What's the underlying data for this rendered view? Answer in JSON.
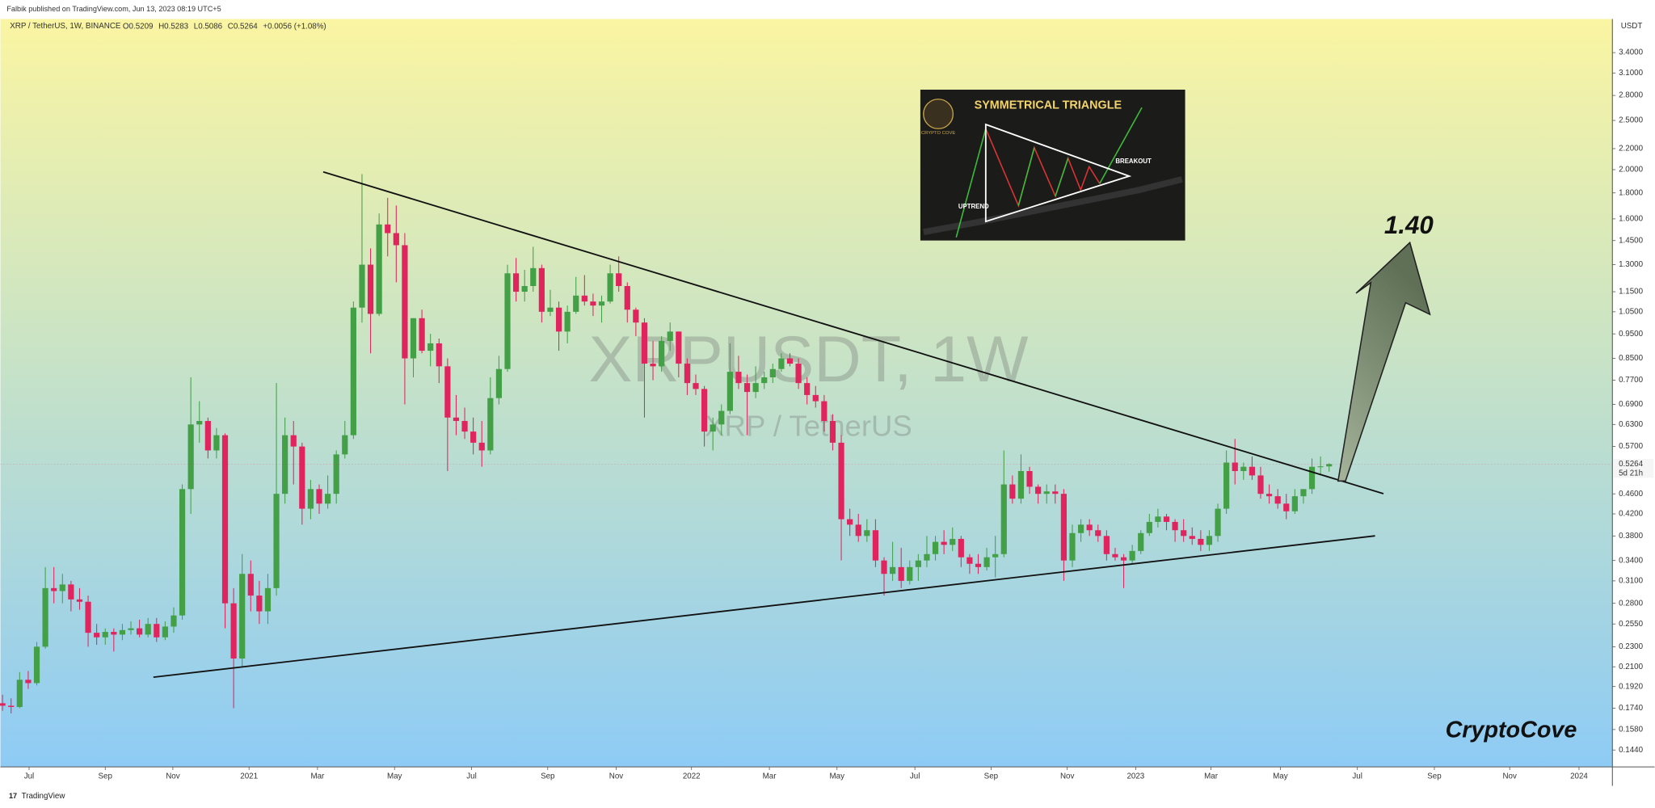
{
  "header": {
    "author": "Falbik published on TradingView.com, Jun 13, 2023 08:19 UTC+5",
    "brand": "TradingView"
  },
  "chart_data": {
    "type": "candlestick",
    "symbol": "XRP / TetherUS, 1W, BINANCE",
    "ohlc_labels": [
      "O",
      "H",
      "L",
      "C"
    ],
    "change": "+0.0056 (+1.08%)",
    "watermark": "XRPUSDT, 1W",
    "watermark_sub": "XRP / TetherUS",
    "currency": "USDT",
    "countdown": "5d 21h",
    "target_label": "1.40",
    "signature": "CryptoCove",
    "inset": {
      "title": "SYMMETRICAL TRIANGLE",
      "breakout": "BREAKOUT",
      "uptrend": "UPTREND",
      "logo": "CRYPTO COVE"
    },
    "log_scale": true,
    "up_color": "#43a047",
    "down_color": "#e0245e",
    "ylim": [
      0.1334,
      3.96
    ],
    "yticks": [
      {
        "value": 3.4,
        "label": "3.4000"
      },
      {
        "value": 3.1,
        "label": "3.1000"
      },
      {
        "value": 2.8,
        "label": "2.8000"
      },
      {
        "value": 2.5,
        "label": "2.5000"
      },
      {
        "value": 2.2,
        "label": "2.2000"
      },
      {
        "value": 2.0,
        "label": "2.0000"
      },
      {
        "value": 1.8,
        "label": "1.8000"
      },
      {
        "value": 1.6,
        "label": "1.6000"
      },
      {
        "value": 1.45,
        "label": "1.4500"
      },
      {
        "value": 1.3,
        "label": "1.3000"
      },
      {
        "value": 1.15,
        "label": "1.1500"
      },
      {
        "value": 1.05,
        "label": "1.0500"
      },
      {
        "value": 0.95,
        "label": "0.9500"
      },
      {
        "value": 0.85,
        "label": "0.8500"
      },
      {
        "value": 0.77,
        "label": "0.7700"
      },
      {
        "value": 0.69,
        "label": "0.6900"
      },
      {
        "value": 0.63,
        "label": "0.6300"
      },
      {
        "value": 0.57,
        "label": "0.5700"
      },
      {
        "value": 0.46,
        "label": "0.4600"
      },
      {
        "value": 0.42,
        "label": "0.4200"
      },
      {
        "value": 0.38,
        "label": "0.3800"
      },
      {
        "value": 0.34,
        "label": "0.3400"
      },
      {
        "value": 0.31,
        "label": "0.3100"
      },
      {
        "value": 0.28,
        "label": "0.2800"
      },
      {
        "value": 0.255,
        "label": "0.2550"
      },
      {
        "value": 0.23,
        "label": "0.2300"
      },
      {
        "value": 0.21,
        "label": "0.2100"
      },
      {
        "value": 0.192,
        "label": "0.1920"
      },
      {
        "value": 0.174,
        "label": "0.1740"
      },
      {
        "value": 0.158,
        "label": "0.1580"
      },
      {
        "value": 0.144,
        "label": "0.1440"
      }
    ],
    "xlim": [
      -0.25,
      188.1
    ],
    "xticks": [
      {
        "value": 3.1,
        "label": "Jul"
      },
      {
        "value": 12.0,
        "label": "Sep"
      },
      {
        "value": 19.9,
        "label": "Nov"
      },
      {
        "value": 28.8,
        "label": "2021"
      },
      {
        "value": 36.8,
        "label": "Mar"
      },
      {
        "value": 45.8,
        "label": "May"
      },
      {
        "value": 54.8,
        "label": "Jul"
      },
      {
        "value": 63.7,
        "label": "Sep"
      },
      {
        "value": 71.7,
        "label": "Nov"
      },
      {
        "value": 80.5,
        "label": "2022"
      },
      {
        "value": 89.6,
        "label": "Mar"
      },
      {
        "value": 97.5,
        "label": "May"
      },
      {
        "value": 106.6,
        "label": "Jul"
      },
      {
        "value": 115.5,
        "label": "Sep"
      },
      {
        "value": 124.4,
        "label": "Nov"
      },
      {
        "value": 132.4,
        "label": "2023"
      },
      {
        "value": 141.2,
        "label": "Mar"
      },
      {
        "value": 149.3,
        "label": "May"
      },
      {
        "value": 158.3,
        "label": "Jul"
      },
      {
        "value": 167.3,
        "label": "Sep"
      },
      {
        "value": 176.1,
        "label": "Nov"
      },
      {
        "value": 184.2,
        "label": "2024"
      }
    ],
    "ohlc": [
      [
        0.178,
        0.185,
        0.172,
        0.176
      ],
      [
        0.176,
        0.182,
        0.17,
        0.175
      ],
      [
        0.175,
        0.205,
        0.174,
        0.198
      ],
      [
        0.198,
        0.206,
        0.19,
        0.195
      ],
      [
        0.195,
        0.235,
        0.193,
        0.23
      ],
      [
        0.23,
        0.33,
        0.228,
        0.3
      ],
      [
        0.3,
        0.33,
        0.28,
        0.296
      ],
      [
        0.296,
        0.32,
        0.28,
        0.305
      ],
      [
        0.305,
        0.31,
        0.27,
        0.285
      ],
      [
        0.285,
        0.3,
        0.272,
        0.282
      ],
      [
        0.282,
        0.29,
        0.23,
        0.245
      ],
      [
        0.245,
        0.255,
        0.232,
        0.24
      ],
      [
        0.24,
        0.25,
        0.232,
        0.246
      ],
      [
        0.246,
        0.25,
        0.225,
        0.243
      ],
      [
        0.243,
        0.255,
        0.237,
        0.248
      ],
      [
        0.248,
        0.258,
        0.243,
        0.25
      ],
      [
        0.25,
        0.26,
        0.24,
        0.243
      ],
      [
        0.243,
        0.262,
        0.24,
        0.255
      ],
      [
        0.255,
        0.262,
        0.235,
        0.24
      ],
      [
        0.24,
        0.258,
        0.237,
        0.252
      ],
      [
        0.252,
        0.275,
        0.245,
        0.265
      ],
      [
        0.265,
        0.48,
        0.26,
        0.47
      ],
      [
        0.47,
        0.78,
        0.42,
        0.63
      ],
      [
        0.63,
        0.7,
        0.58,
        0.64
      ],
      [
        0.64,
        0.65,
        0.54,
        0.56
      ],
      [
        0.56,
        0.62,
        0.54,
        0.6
      ],
      [
        0.6,
        0.605,
        0.25,
        0.28
      ],
      [
        0.28,
        0.3,
        0.174,
        0.218
      ],
      [
        0.218,
        0.35,
        0.21,
        0.32
      ],
      [
        0.32,
        0.34,
        0.27,
        0.29
      ],
      [
        0.29,
        0.31,
        0.255,
        0.27
      ],
      [
        0.27,
        0.32,
        0.255,
        0.3
      ],
      [
        0.3,
        0.76,
        0.29,
        0.46
      ],
      [
        0.46,
        0.65,
        0.44,
        0.6
      ],
      [
        0.6,
        0.64,
        0.48,
        0.57
      ],
      [
        0.57,
        0.58,
        0.4,
        0.43
      ],
      [
        0.43,
        0.49,
        0.41,
        0.47
      ],
      [
        0.47,
        0.48,
        0.42,
        0.44
      ],
      [
        0.44,
        0.5,
        0.43,
        0.46
      ],
      [
        0.46,
        0.56,
        0.44,
        0.55
      ],
      [
        0.55,
        0.64,
        0.54,
        0.6
      ],
      [
        0.6,
        1.1,
        0.59,
        1.07
      ],
      [
        1.07,
        1.96,
        1.0,
        1.3
      ],
      [
        1.3,
        1.4,
        0.87,
        1.04
      ],
      [
        1.04,
        1.64,
        1.03,
        1.56
      ],
      [
        1.56,
        1.76,
        1.35,
        1.5
      ],
      [
        1.5,
        1.7,
        1.2,
        1.42
      ],
      [
        1.42,
        1.5,
        0.69,
        0.85
      ],
      [
        0.85,
        1.02,
        0.78,
        1.02
      ],
      [
        1.02,
        1.06,
        0.87,
        0.88
      ],
      [
        0.88,
        0.95,
        0.82,
        0.91
      ],
      [
        0.91,
        0.93,
        0.76,
        0.82
      ],
      [
        0.82,
        0.85,
        0.51,
        0.65
      ],
      [
        0.65,
        0.72,
        0.6,
        0.64
      ],
      [
        0.64,
        0.68,
        0.59,
        0.61
      ],
      [
        0.61,
        0.65,
        0.55,
        0.58
      ],
      [
        0.58,
        0.64,
        0.52,
        0.56
      ],
      [
        0.56,
        0.78,
        0.55,
        0.71
      ],
      [
        0.71,
        0.86,
        0.69,
        0.81
      ],
      [
        0.81,
        1.3,
        0.8,
        1.25
      ],
      [
        1.25,
        1.34,
        1.1,
        1.15
      ],
      [
        1.15,
        1.27,
        1.1,
        1.18
      ],
      [
        1.18,
        1.41,
        1.15,
        1.28
      ],
      [
        1.28,
        1.3,
        1.0,
        1.05
      ],
      [
        1.05,
        1.16,
        1.03,
        1.07
      ],
      [
        1.07,
        1.1,
        0.88,
        0.96
      ],
      [
        0.96,
        1.08,
        0.91,
        1.05
      ],
      [
        1.05,
        1.23,
        1.04,
        1.13
      ],
      [
        1.13,
        1.24,
        1.08,
        1.1
      ],
      [
        1.1,
        1.14,
        1.03,
        1.08
      ],
      [
        1.08,
        1.13,
        1.0,
        1.1
      ],
      [
        1.1,
        1.3,
        1.09,
        1.25
      ],
      [
        1.25,
        1.35,
        1.15,
        1.18
      ],
      [
        1.18,
        1.2,
        1.0,
        1.06
      ],
      [
        1.06,
        1.07,
        0.94,
        1.0
      ],
      [
        1.0,
        1.02,
        0.65,
        0.83
      ],
      [
        0.83,
        0.92,
        0.77,
        0.82
      ],
      [
        0.82,
        0.94,
        0.8,
        0.92
      ],
      [
        0.92,
        1.0,
        0.88,
        0.96
      ],
      [
        0.96,
        0.96,
        0.78,
        0.83
      ],
      [
        0.83,
        0.85,
        0.72,
        0.76
      ],
      [
        0.76,
        0.79,
        0.72,
        0.74
      ],
      [
        0.74,
        0.75,
        0.57,
        0.61
      ],
      [
        0.61,
        0.65,
        0.56,
        0.63
      ],
      [
        0.63,
        0.69,
        0.6,
        0.67
      ],
      [
        0.67,
        0.91,
        0.66,
        0.8
      ],
      [
        0.8,
        0.86,
        0.74,
        0.76
      ],
      [
        0.76,
        0.79,
        0.6,
        0.73
      ],
      [
        0.73,
        0.82,
        0.71,
        0.76
      ],
      [
        0.76,
        0.8,
        0.74,
        0.78
      ],
      [
        0.78,
        0.83,
        0.76,
        0.81
      ],
      [
        0.81,
        0.87,
        0.8,
        0.85
      ],
      [
        0.85,
        0.87,
        0.82,
        0.83
      ],
      [
        0.83,
        0.85,
        0.74,
        0.76
      ],
      [
        0.76,
        0.78,
        0.69,
        0.72
      ],
      [
        0.72,
        0.75,
        0.68,
        0.7
      ],
      [
        0.7,
        0.72,
        0.61,
        0.64
      ],
      [
        0.64,
        0.66,
        0.56,
        0.58
      ],
      [
        0.58,
        0.6,
        0.34,
        0.41
      ],
      [
        0.41,
        0.43,
        0.38,
        0.4
      ],
      [
        0.4,
        0.42,
        0.37,
        0.38
      ],
      [
        0.38,
        0.41,
        0.37,
        0.39
      ],
      [
        0.39,
        0.41,
        0.33,
        0.34
      ],
      [
        0.34,
        0.345,
        0.29,
        0.32
      ],
      [
        0.32,
        0.37,
        0.31,
        0.33
      ],
      [
        0.33,
        0.36,
        0.3,
        0.31
      ],
      [
        0.31,
        0.34,
        0.305,
        0.33
      ],
      [
        0.33,
        0.35,
        0.31,
        0.34
      ],
      [
        0.34,
        0.38,
        0.33,
        0.35
      ],
      [
        0.35,
        0.38,
        0.34,
        0.37
      ],
      [
        0.37,
        0.39,
        0.35,
        0.365
      ],
      [
        0.365,
        0.395,
        0.355,
        0.375
      ],
      [
        0.375,
        0.38,
        0.33,
        0.345
      ],
      [
        0.345,
        0.35,
        0.32,
        0.335
      ],
      [
        0.335,
        0.35,
        0.32,
        0.33
      ],
      [
        0.33,
        0.36,
        0.325,
        0.345
      ],
      [
        0.345,
        0.38,
        0.315,
        0.35
      ],
      [
        0.35,
        0.56,
        0.345,
        0.48
      ],
      [
        0.48,
        0.5,
        0.44,
        0.45
      ],
      [
        0.45,
        0.55,
        0.44,
        0.51
      ],
      [
        0.51,
        0.52,
        0.46,
        0.475
      ],
      [
        0.475,
        0.48,
        0.44,
        0.46
      ],
      [
        0.46,
        0.48,
        0.44,
        0.465
      ],
      [
        0.465,
        0.48,
        0.44,
        0.46
      ],
      [
        0.46,
        0.47,
        0.31,
        0.34
      ],
      [
        0.34,
        0.4,
        0.33,
        0.385
      ],
      [
        0.385,
        0.41,
        0.37,
        0.4
      ],
      [
        0.4,
        0.41,
        0.38,
        0.39
      ],
      [
        0.39,
        0.4,
        0.37,
        0.38
      ],
      [
        0.38,
        0.39,
        0.34,
        0.35
      ],
      [
        0.35,
        0.36,
        0.34,
        0.345
      ],
      [
        0.345,
        0.35,
        0.3,
        0.34
      ],
      [
        0.34,
        0.365,
        0.335,
        0.355
      ],
      [
        0.355,
        0.39,
        0.35,
        0.385
      ],
      [
        0.385,
        0.42,
        0.38,
        0.405
      ],
      [
        0.405,
        0.43,
        0.395,
        0.415
      ],
      [
        0.415,
        0.42,
        0.39,
        0.405
      ],
      [
        0.405,
        0.41,
        0.37,
        0.39
      ],
      [
        0.39,
        0.41,
        0.37,
        0.38
      ],
      [
        0.38,
        0.395,
        0.365,
        0.375
      ],
      [
        0.375,
        0.39,
        0.355,
        0.365
      ],
      [
        0.365,
        0.39,
        0.355,
        0.38
      ],
      [
        0.38,
        0.44,
        0.37,
        0.43
      ],
      [
        0.43,
        0.56,
        0.42,
        0.53
      ],
      [
        0.53,
        0.59,
        0.48,
        0.51
      ],
      [
        0.51,
        0.53,
        0.49,
        0.52
      ],
      [
        0.52,
        0.545,
        0.49,
        0.5
      ],
      [
        0.5,
        0.52,
        0.45,
        0.46
      ],
      [
        0.46,
        0.48,
        0.44,
        0.455
      ],
      [
        0.455,
        0.47,
        0.43,
        0.44
      ],
      [
        0.44,
        0.46,
        0.41,
        0.425
      ],
      [
        0.425,
        0.47,
        0.42,
        0.455
      ],
      [
        0.455,
        0.47,
        0.44,
        0.47
      ],
      [
        0.47,
        0.54,
        0.46,
        0.52
      ],
      [
        0.52,
        0.545,
        0.5,
        0.521
      ],
      [
        0.5209,
        0.5283,
        0.5086,
        0.5264
      ]
    ]
  }
}
